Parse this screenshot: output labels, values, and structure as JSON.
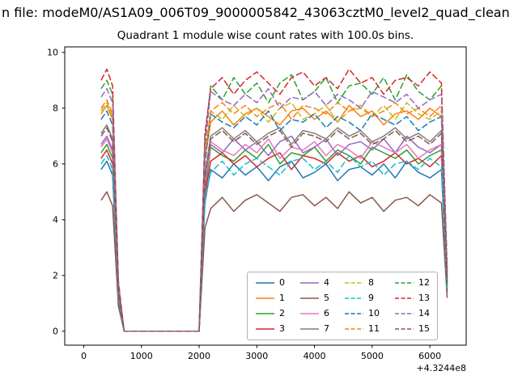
{
  "figure": {
    "supertitle": "n file: modeM0/AS1A09_006T09_9000005842_43063cztM0_level2_quad_clean",
    "title": "Quadrant 1 module wise count rates with 100.0s bins."
  },
  "axes": {
    "xlim": [
      -330,
      6630
    ],
    "ylim": [
      -0.5,
      10.2
    ],
    "xticks": [
      0,
      1000,
      2000,
      3000,
      4000,
      5000,
      6000
    ],
    "yticks": [
      0,
      2,
      4,
      6,
      8,
      10
    ],
    "x_offset_label": "+4.3244e8"
  },
  "chart_data": {
    "type": "line",
    "title": "Quadrant 1 module wise count rates with 100.0s bins.",
    "xlabel": "",
    "ylabel": "",
    "x_axis_offset_text": "+4.3244e8",
    "bin_seconds": 100.0,
    "legend_position": "lower center-right inside axes, 4 columns",
    "x": [
      300,
      400,
      500,
      600,
      700,
      900,
      1100,
      1300,
      1500,
      1700,
      1900,
      2000,
      2100,
      2200,
      2400,
      2600,
      2800,
      3000,
      3200,
      3400,
      3600,
      3800,
      4000,
      4200,
      4400,
      4600,
      4800,
      5000,
      5200,
      5400,
      5600,
      5800,
      6000,
      6200,
      6300
    ],
    "series": [
      {
        "name": "0",
        "color": "#1f77b4",
        "linestyle": "solid",
        "values": [
          5.8,
          6.1,
          5.6,
          1.1,
          0,
          0,
          0,
          0,
          0,
          0,
          0,
          0,
          4.6,
          5.8,
          5.5,
          6.0,
          5.6,
          5.9,
          5.4,
          5.9,
          6.1,
          5.5,
          5.7,
          6.0,
          5.4,
          5.8,
          5.9,
          5.6,
          6.0,
          5.5,
          6.1,
          5.7,
          5.5,
          5.8,
          1.4
        ]
      },
      {
        "name": "1",
        "color": "#ff7f0e",
        "linestyle": "solid",
        "values": [
          7.8,
          8.1,
          7.6,
          1.5,
          0,
          0,
          0,
          0,
          0,
          0,
          0,
          0,
          6.2,
          7.5,
          7.9,
          7.4,
          7.8,
          8.0,
          7.7,
          7.4,
          7.9,
          8.0,
          7.6,
          7.9,
          7.5,
          8.1,
          7.7,
          7.9,
          7.4,
          7.8,
          7.9,
          7.6,
          8.0,
          7.7,
          1.9
        ]
      },
      {
        "name": "2",
        "color": "#2ca02c",
        "linestyle": "solid",
        "values": [
          6.4,
          6.7,
          6.2,
          1.3,
          0,
          0,
          0,
          0,
          0,
          0,
          0,
          0,
          5.0,
          6.6,
          6.3,
          6.1,
          6.5,
          6.2,
          6.7,
          6.0,
          6.4,
          6.3,
          6.6,
          6.1,
          6.5,
          6.3,
          6.0,
          6.6,
          6.4,
          6.2,
          6.5,
          6.0,
          6.3,
          6.5,
          1.6
        ]
      },
      {
        "name": "3",
        "color": "#d62728",
        "linestyle": "solid",
        "values": [
          6.2,
          6.5,
          6.0,
          1.2,
          0,
          0,
          0,
          0,
          0,
          0,
          0,
          0,
          4.9,
          6.1,
          6.4,
          6.0,
          6.3,
          5.9,
          6.2,
          6.4,
          5.8,
          6.3,
          6.2,
          6.0,
          6.4,
          6.1,
          6.3,
          5.9,
          6.1,
          6.4,
          6.0,
          6.2,
          5.9,
          6.3,
          1.5
        ]
      },
      {
        "name": "4",
        "color": "#9467bd",
        "linestyle": "solid",
        "values": [
          6.7,
          7.0,
          6.5,
          1.3,
          0,
          0,
          0,
          0,
          0,
          0,
          0,
          0,
          5.3,
          6.7,
          6.4,
          6.9,
          6.5,
          6.8,
          6.3,
          6.8,
          7.0,
          6.4,
          6.6,
          6.9,
          6.3,
          6.7,
          6.8,
          6.5,
          6.9,
          6.4,
          7.0,
          6.6,
          6.4,
          6.7,
          1.7
        ]
      },
      {
        "name": "5",
        "color": "#8c564b",
        "linestyle": "solid",
        "values": [
          4.7,
          5.0,
          4.5,
          0.9,
          0,
          0,
          0,
          0,
          0,
          0,
          0,
          0,
          3.7,
          4.4,
          4.8,
          4.3,
          4.7,
          4.9,
          4.6,
          4.3,
          4.8,
          4.9,
          4.5,
          4.8,
          4.4,
          5.0,
          4.6,
          4.8,
          4.3,
          4.7,
          4.8,
          4.5,
          4.9,
          4.6,
          1.2
        ]
      },
      {
        "name": "6",
        "color": "#e377c2",
        "linestyle": "solid",
        "values": [
          6.6,
          6.9,
          6.4,
          1.3,
          0,
          0,
          0,
          0,
          0,
          0,
          0,
          0,
          5.2,
          6.8,
          6.5,
          6.3,
          6.7,
          6.4,
          6.9,
          6.2,
          6.6,
          6.5,
          6.8,
          6.3,
          6.7,
          6.5,
          6.2,
          6.8,
          6.6,
          6.4,
          6.7,
          6.2,
          6.5,
          6.7,
          1.6
        ]
      },
      {
        "name": "7",
        "color": "#7f7f7f",
        "linestyle": "solid",
        "values": [
          7.1,
          7.4,
          6.9,
          1.4,
          0,
          0,
          0,
          0,
          0,
          0,
          0,
          0,
          5.6,
          7.0,
          7.3,
          6.9,
          7.2,
          6.8,
          7.1,
          7.3,
          6.7,
          7.2,
          7.1,
          6.9,
          7.3,
          7.0,
          7.2,
          6.8,
          7.0,
          7.3,
          6.9,
          7.1,
          6.8,
          7.2,
          1.8
        ]
      },
      {
        "name": "8",
        "color": "#bcbd22",
        "linestyle": "dashed",
        "values": [
          7.9,
          8.2,
          7.7,
          1.6,
          0,
          0,
          0,
          0,
          0,
          0,
          0,
          0,
          6.2,
          7.9,
          7.6,
          8.1,
          7.7,
          8.0,
          7.5,
          8.0,
          8.2,
          7.6,
          7.8,
          8.1,
          7.5,
          7.9,
          8.0,
          7.7,
          8.1,
          7.6,
          8.2,
          7.8,
          7.6,
          7.9,
          2.0
        ]
      },
      {
        "name": "9",
        "color": "#17becf",
        "linestyle": "dashed",
        "values": [
          6.0,
          6.3,
          5.8,
          1.2,
          0,
          0,
          0,
          0,
          0,
          0,
          0,
          0,
          4.7,
          5.7,
          6.1,
          5.6,
          6.0,
          6.2,
          5.9,
          5.6,
          6.1,
          6.2,
          5.8,
          6.1,
          5.7,
          6.3,
          5.9,
          6.1,
          5.6,
          6.0,
          6.1,
          5.8,
          6.2,
          5.9,
          1.5
        ]
      },
      {
        "name": "10",
        "color": "#1f77b4",
        "linestyle": "dashed",
        "values": [
          7.6,
          7.9,
          7.4,
          1.5,
          0,
          0,
          0,
          0,
          0,
          0,
          0,
          0,
          6.0,
          7.8,
          7.5,
          7.3,
          7.7,
          7.4,
          7.9,
          7.2,
          7.6,
          7.5,
          7.8,
          7.3,
          7.7,
          7.5,
          7.2,
          7.8,
          7.6,
          7.4,
          7.7,
          7.2,
          7.5,
          7.7,
          1.9
        ]
      },
      {
        "name": "11",
        "color": "#ff7f0e",
        "linestyle": "dashed",
        "values": [
          8.0,
          8.3,
          7.8,
          1.6,
          0,
          0,
          0,
          0,
          0,
          0,
          0,
          0,
          6.3,
          7.9,
          8.2,
          7.8,
          8.1,
          7.7,
          8.0,
          8.2,
          7.6,
          8.1,
          8.0,
          7.8,
          8.2,
          7.9,
          8.1,
          7.7,
          7.9,
          8.2,
          7.8,
          8.0,
          7.7,
          8.1,
          2.0
        ]
      },
      {
        "name": "12",
        "color": "#2ca02c",
        "linestyle": "dashed",
        "values": [
          8.7,
          9.0,
          8.5,
          1.7,
          0,
          0,
          0,
          0,
          0,
          0,
          0,
          0,
          6.9,
          8.8,
          8.3,
          9.1,
          8.5,
          8.9,
          8.2,
          8.9,
          9.2,
          8.3,
          8.6,
          9.1,
          8.2,
          8.8,
          8.9,
          8.5,
          9.1,
          8.3,
          9.2,
          8.6,
          8.3,
          8.8,
          2.2
        ]
      },
      {
        "name": "13",
        "color": "#d62728",
        "linestyle": "dashed",
        "values": [
          9.0,
          9.4,
          8.8,
          1.8,
          0,
          0,
          0,
          0,
          0,
          0,
          0,
          0,
          7.1,
          8.7,
          9.1,
          8.5,
          9.0,
          9.3,
          8.9,
          8.5,
          9.1,
          9.3,
          8.8,
          9.1,
          8.7,
          9.4,
          8.9,
          9.1,
          8.5,
          9.0,
          9.1,
          8.8,
          9.3,
          8.9,
          2.2
        ]
      },
      {
        "name": "14",
        "color": "#9467bd",
        "linestyle": "dashed",
        "values": [
          8.4,
          8.7,
          8.2,
          1.7,
          0,
          0,
          0,
          0,
          0,
          0,
          0,
          0,
          6.6,
          8.6,
          8.3,
          8.1,
          8.5,
          8.2,
          8.7,
          8.0,
          8.4,
          8.3,
          8.6,
          8.1,
          8.5,
          8.3,
          8.0,
          8.6,
          8.4,
          8.2,
          8.5,
          8.0,
          8.3,
          8.5,
          2.1
        ]
      },
      {
        "name": "15",
        "color": "#8c564b",
        "linestyle": "dashed",
        "values": [
          7.0,
          7.3,
          6.8,
          1.4,
          0,
          0,
          0,
          0,
          0,
          0,
          0,
          0,
          5.5,
          6.9,
          7.2,
          6.8,
          7.1,
          6.7,
          7.0,
          7.2,
          6.6,
          7.1,
          7.0,
          6.8,
          7.2,
          6.9,
          7.1,
          6.7,
          6.9,
          7.2,
          6.8,
          7.0,
          6.7,
          7.1,
          1.7
        ]
      }
    ]
  }
}
